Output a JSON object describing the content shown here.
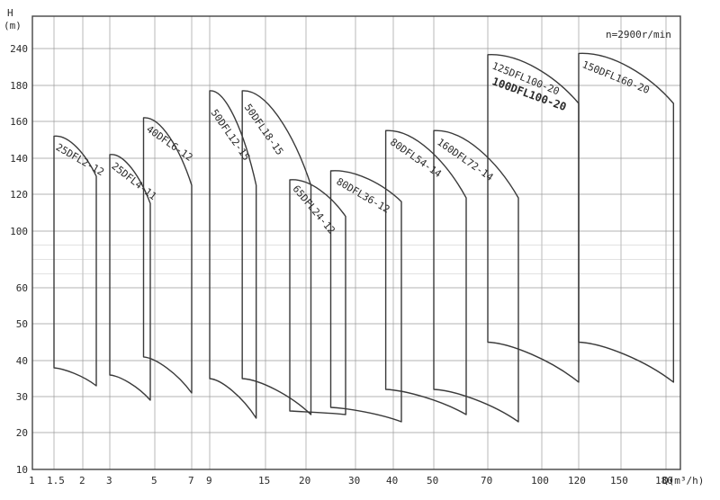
{
  "chart_data": {
    "type": "line",
    "title": "",
    "y_axis_label": [
      "H",
      "(m)"
    ],
    "x_axis_label": "Q(m³/h)",
    "note": "n=2900r/min",
    "x_ticks": [
      "1",
      "1.5",
      "2",
      "3",
      "5",
      "7",
      "9",
      "15",
      "20",
      "30",
      "40",
      "50",
      "70",
      "100",
      "120",
      "150",
      "180"
    ],
    "y_ticks": [
      "240",
      "180",
      "160",
      "140",
      "120",
      "100",
      "60",
      "50",
      "40",
      "30",
      "20",
      "10"
    ],
    "grid": true,
    "series": [
      {
        "name": "25DFL2-12",
        "q_min": 1.5,
        "q_max": 2.5,
        "h_top_left": 152,
        "h_top_right": 130,
        "h_bottom_left": 38,
        "h_bottom_right": 33
      },
      {
        "name": "25DFL4-11",
        "q_min": 3.0,
        "q_max": 4.8,
        "h_top_left": 142,
        "h_top_right": 115,
        "h_bottom_left": 36,
        "h_bottom_right": 29
      },
      {
        "name": "40DFL6-12",
        "q_min": 4.5,
        "q_max": 7.0,
        "h_top_left": 162,
        "h_top_right": 125,
        "h_bottom_left": 41,
        "h_bottom_right": 31
      },
      {
        "name": "50DFL12-15",
        "q_min": 9.0,
        "q_max": 14.0,
        "h_top_left": 177,
        "h_top_right": 125,
        "h_bottom_left": 35,
        "h_bottom_right": 24
      },
      {
        "name": "50DFL18-15",
        "q_min": 12.5,
        "q_max": 21.0,
        "h_top_left": 177,
        "h_top_right": 125,
        "h_bottom_left": 35,
        "h_bottom_right": 25
      },
      {
        "name": "65DFL24-12",
        "q_min": 18.0,
        "q_max": 28.0,
        "h_top_left": 128,
        "h_top_right": 108,
        "h_bottom_left": 26,
        "h_bottom_right": 25
      },
      {
        "name": "80DFL36-12",
        "q_min": 25.0,
        "q_max": 42.0,
        "h_top_left": 133,
        "h_top_right": 116,
        "h_bottom_left": 27,
        "h_bottom_right": 23
      },
      {
        "name": "80DFL54-14",
        "q_min": 38.0,
        "q_max": 62.0,
        "h_top_left": 155,
        "h_top_right": 118,
        "h_bottom_left": 32,
        "h_bottom_right": 25
      },
      {
        "name": "160DFL72-14",
        "q_min": 50.0,
        "q_max": 87.0,
        "h_top_left": 155,
        "h_top_right": 118,
        "h_bottom_left": 32,
        "h_bottom_right": 23
      },
      {
        "name": "125DFL100-20",
        "q_min": 70.0,
        "q_max": 120.0,
        "h_top_left": 230,
        "h_top_right": 170,
        "h_bottom_left": 45,
        "h_bottom_right": 34
      },
      {
        "name": "100DFL100-20",
        "q_min": 70.0,
        "q_max": 120.0,
        "h_top_left": 230,
        "h_top_right": 170,
        "h_bottom_left": 45,
        "h_bottom_right": 34
      },
      {
        "name": "150DFL160-20",
        "q_min": 120.0,
        "q_max": 185.0,
        "h_top_left": 232,
        "h_top_right": 170,
        "h_bottom_left": 45,
        "h_bottom_right": 34
      }
    ]
  }
}
